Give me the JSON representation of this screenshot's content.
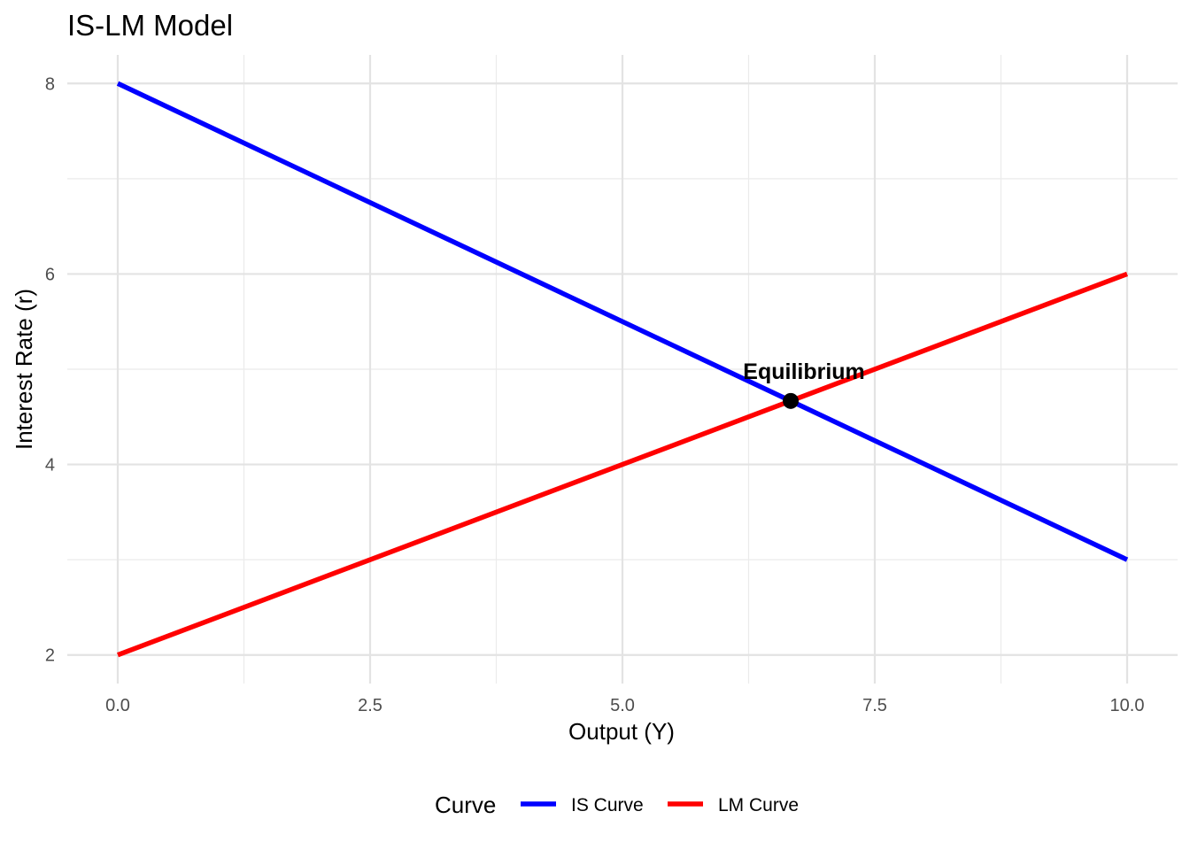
{
  "chart_data": {
    "type": "line",
    "title": "IS-LM Model",
    "xlabel": "Output (Y)",
    "ylabel": "Interest Rate (r)",
    "xlim": [
      -0.5,
      10.5
    ],
    "ylim": [
      1.7,
      8.3
    ],
    "x_ticks": [
      0,
      2.5,
      5,
      7.5,
      10
    ],
    "x_tick_labels": [
      "0.0",
      "2.5",
      "5.0",
      "7.5",
      "10.0"
    ],
    "y_ticks": [
      2,
      4,
      6,
      8
    ],
    "y_tick_labels": [
      "2",
      "4",
      "6",
      "8"
    ],
    "grid": true,
    "legend": {
      "title": "Curve",
      "position": "bottom"
    },
    "series": [
      {
        "name": "IS Curve",
        "color": "#0000ff",
        "x": [
          0,
          10
        ],
        "y": [
          8,
          3
        ]
      },
      {
        "name": "LM Curve",
        "color": "#ff0000",
        "x": [
          0,
          10
        ],
        "y": [
          2,
          6
        ]
      }
    ],
    "annotations": [
      {
        "label": "Equilibrium",
        "x": 6.667,
        "y": 4.667,
        "marker_color": "#000000"
      }
    ]
  }
}
